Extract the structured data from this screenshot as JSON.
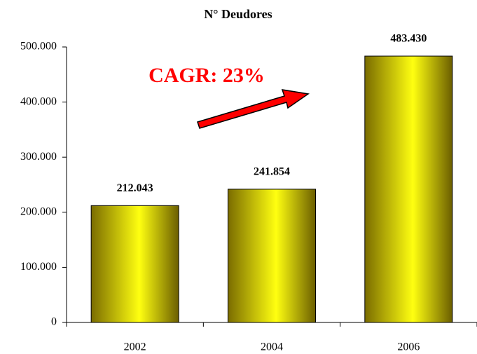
{
  "chart_data": {
    "type": "bar",
    "title": "N° Deudores",
    "categories": [
      "2002",
      "2004",
      "2006"
    ],
    "values": [
      212043,
      241854,
      483430
    ],
    "value_labels": [
      "212.043",
      "241.854",
      "483.430"
    ],
    "annotation": "CAGR: 23%",
    "ylim": [
      0,
      500000
    ],
    "yticks": [
      0,
      {
        "value": 100000,
        "label": "100.000"
      },
      {
        "value": 200000,
        "label": "200.000"
      },
      {
        "value": 300000,
        "label": "300.000"
      },
      {
        "value": 400000,
        "label": "400.000"
      },
      {
        "value": 500000,
        "label": "500.000"
      }
    ],
    "grid": false
  }
}
